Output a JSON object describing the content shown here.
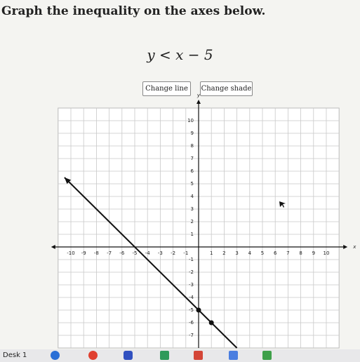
{
  "header": {
    "title": "Graph the inequality on the axes below.",
    "inequality": "y < x − 5"
  },
  "buttons": [
    "Change line",
    "Change shade"
  ],
  "graph": {
    "x_label": "x",
    "y_label": "y",
    "xlim": [
      -11,
      11
    ],
    "ylim": [
      -8,
      11
    ],
    "xticks": [
      -10,
      -9,
      -8,
      -7,
      -6,
      -5,
      -4,
      -3,
      -2,
      -1,
      1,
      2,
      3,
      4,
      5,
      6,
      7,
      8,
      9,
      10
    ],
    "yticks": [
      -7,
      -6,
      -5,
      -4,
      -3,
      -2,
      -1,
      1,
      2,
      3,
      4,
      5,
      6,
      7,
      8,
      9,
      10
    ],
    "points": [
      {
        "x": 0,
        "y": -5
      },
      {
        "x": 1,
        "y": -6
      }
    ]
  },
  "taskbar": {
    "label": "Desk 1"
  }
}
